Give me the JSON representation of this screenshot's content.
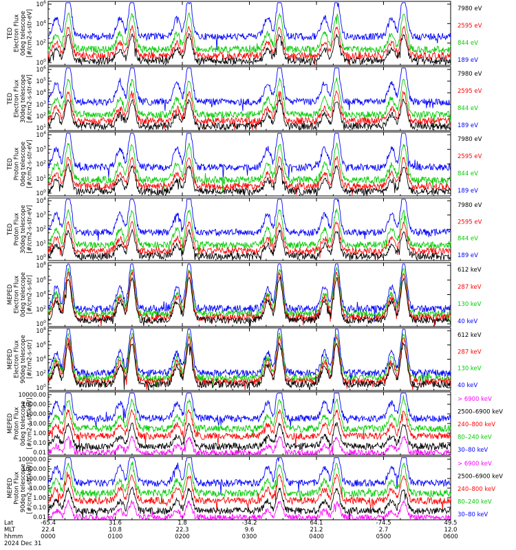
{
  "colors": {
    "blue": "#0000ff",
    "red": "#ff0000",
    "green": "#00cc00",
    "black": "#000000",
    "magenta": "#ff00ff"
  },
  "chart_data": [
    {
      "type": "line",
      "ylabel": [
        "TED",
        "Electron Flux",
        "0deg telescope",
        "[#/cm2-s-str-eV]"
      ],
      "yticks": [
        "10^6",
        "10^4",
        "10^2",
        "10^0"
      ],
      "ylim_log": [
        0,
        6
      ],
      "series": [
        {
          "name": "7980 eV",
          "color": "#000000"
        },
        {
          "name": "2595 eV",
          "color": "#ff0000"
        },
        {
          "name": "844 eV",
          "color": "#00cc00"
        },
        {
          "name": "189 eV",
          "color": "#0000ff"
        }
      ]
    },
    {
      "type": "line",
      "ylabel": [
        "TED",
        "Electron Flux",
        "30deg telescope",
        "[#/cm2-s-str-eV]"
      ],
      "yticks": [
        "10^6",
        "10^5",
        "10^4",
        "10^3",
        "10^2",
        "10^1"
      ],
      "ylim_log": [
        1,
        6
      ],
      "series": [
        {
          "name": "7980 eV",
          "color": "#000000"
        },
        {
          "name": "2595 eV",
          "color": "#ff0000"
        },
        {
          "name": "844 eV",
          "color": "#00cc00"
        },
        {
          "name": "189 eV",
          "color": "#0000ff"
        }
      ]
    },
    {
      "type": "line",
      "ylabel": [
        "TED",
        "Proton Flux",
        "0deg telescope",
        "[#/cm2-s-str-eV]"
      ],
      "yticks": [
        "10^4",
        "10^3",
        "10^2",
        "10^1",
        "10^0"
      ],
      "ylim_log": [
        0,
        4
      ],
      "series": [
        {
          "name": "7980 eV",
          "color": "#000000"
        },
        {
          "name": "2595 eV",
          "color": "#ff0000"
        },
        {
          "name": "844 eV",
          "color": "#00cc00"
        },
        {
          "name": "189 eV",
          "color": "#0000ff"
        }
      ]
    },
    {
      "type": "line",
      "ylabel": [
        "TED",
        "Proton Flux",
        "30deg telescope",
        "[#/cm2-s-str-eV]"
      ],
      "yticks": [
        "10^4",
        "10^3",
        "10^2",
        "10^1",
        "10^0"
      ],
      "ylim_log": [
        0,
        4
      ],
      "series": [
        {
          "name": "7980 eV",
          "color": "#000000"
        },
        {
          "name": "2595 eV",
          "color": "#ff0000"
        },
        {
          "name": "844 eV",
          "color": "#00cc00"
        },
        {
          "name": "189 eV",
          "color": "#0000ff"
        }
      ]
    },
    {
      "type": "line",
      "ylabel": [
        "MEPED",
        "Electron Flux",
        "0deg telescope",
        "[#/cm2-s-str]"
      ],
      "yticks": [
        "10^8",
        "10^6",
        "10^4",
        "10^2",
        "10^0"
      ],
      "ylim_log": [
        0,
        8
      ],
      "series": [
        {
          "name": "612 keV",
          "color": "#000000"
        },
        {
          "name": "287 keV",
          "color": "#ff0000"
        },
        {
          "name": "130 keV",
          "color": "#00cc00"
        },
        {
          "name": "40 keV",
          "color": "#0000ff"
        }
      ]
    },
    {
      "type": "line",
      "ylabel": [
        "MEPED",
        "Electron Flux",
        "90deg telescope",
        "[#/cm2-s-str]"
      ],
      "yticks": [
        "10^8",
        "10^6",
        "10^4",
        "10^2",
        "10^0"
      ],
      "ylim_log": [
        0,
        8
      ],
      "series": [
        {
          "name": "612 keV",
          "color": "#000000"
        },
        {
          "name": "287 keV",
          "color": "#ff0000"
        },
        {
          "name": "130 keV",
          "color": "#00cc00"
        },
        {
          "name": "40 keV",
          "color": "#0000ff"
        }
      ]
    },
    {
      "type": "line",
      "ylabel": [
        "MEPED",
        "Proton Flux",
        "0deg telescope",
        "[#/cm2-s-str-keV]"
      ],
      "yticks": [
        "10000.00",
        "1000.00",
        "100.00",
        "10.00",
        "1.00",
        "0.10",
        "0.01"
      ],
      "ylim_log": [
        -2,
        4
      ],
      "series": [
        {
          "name": "> 6900 keV",
          "color": "#ff00ff"
        },
        {
          "name": "2500–6900 keV",
          "color": "#000000"
        },
        {
          "name": "240–800 keV",
          "color": "#ff0000"
        },
        {
          "name": "80–240 keV",
          "color": "#00cc00"
        },
        {
          "name": "30–80 keV",
          "color": "#0000ff"
        }
      ]
    },
    {
      "type": "line",
      "ylabel": [
        "MEPED",
        "Proton Flux",
        "90deg telescope",
        "[#/cm2-s-str-keV]"
      ],
      "yticks": [
        "10000.00",
        "1000.00",
        "100.00",
        "10.00",
        "1.00",
        "0.10",
        "0.01"
      ],
      "ylim_log": [
        -2,
        4
      ],
      "series": [
        {
          "name": "> 6900 keV",
          "color": "#ff00ff"
        },
        {
          "name": "2500–6900 keV",
          "color": "#000000"
        },
        {
          "name": "240–800 keV",
          "color": "#ff0000"
        },
        {
          "name": "80–240 keV",
          "color": "#00cc00"
        },
        {
          "name": "30–80 keV",
          "color": "#0000ff"
        }
      ]
    }
  ],
  "xaxis": {
    "row_labels": [
      "Lat",
      "MLT",
      "hhmm",
      "2024 Dec 31"
    ],
    "lat": [
      "-65.4",
      "31.6",
      "1.8",
      "-34.2",
      "64.1",
      "-74.5",
      "49.5"
    ],
    "mlt": [
      "22.4",
      "10.8",
      "22.3",
      "9.6",
      "21.2",
      "2.7",
      "12.0"
    ],
    "hhmm": [
      "0000",
      "0100",
      "0200",
      "0300",
      "0400",
      "0500",
      "0600"
    ]
  },
  "passes_hours": [
    0.3,
    1.25,
    2.1,
    3.45,
    4.3,
    5.3
  ]
}
